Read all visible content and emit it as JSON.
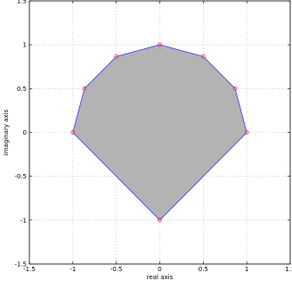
{
  "chart_data": {
    "type": "scatter",
    "title": "",
    "xlabel": "real axis",
    "ylabel": "imaginary axis",
    "xlim": [
      -1.5,
      1.5
    ],
    "ylim": [
      -1.5,
      1.5
    ],
    "grid": true,
    "xticks": [
      -1.5,
      -1,
      -0.5,
      0,
      0.5,
      1,
      1.5
    ],
    "yticks": [
      -1.5,
      -1,
      -0.5,
      0,
      0.5,
      1,
      1.5
    ],
    "xtick_labels": [
      "-1.5",
      "-1",
      "-0.5",
      "0",
      "0.5",
      "1",
      "1.5"
    ],
    "ytick_labels": [
      "-1.5",
      "-1",
      "-0.5",
      "0",
      "0.5",
      "1",
      "1.5"
    ],
    "series": [
      {
        "x": [
          -1,
          -0.866,
          -0.5,
          0,
          0.5,
          0.866,
          1,
          0
        ],
        "y": [
          0,
          0.5,
          0.866,
          1,
          0.866,
          0.5,
          0,
          -1
        ]
      }
    ],
    "colors": {
      "fill": "#b3b3b3",
      "edge": "#3333ff",
      "marker": "#ff3333",
      "grid": "#c8c8c8",
      "axes": "#000000"
    }
  }
}
